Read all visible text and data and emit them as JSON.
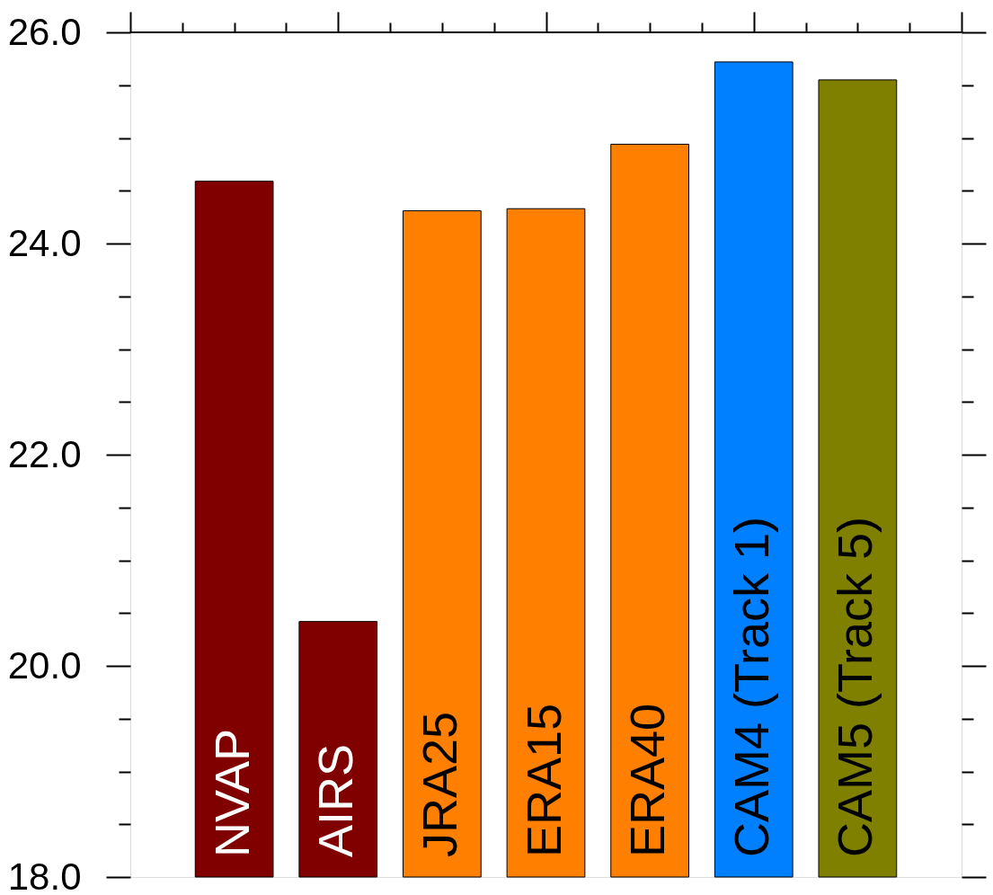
{
  "chart_data": {
    "type": "bar",
    "categories": [
      "NVAP",
      "AIRS",
      "JRA25",
      "ERA15",
      "ERA40",
      "CAM4 (Track 1)",
      "CAM5 (Track 5)"
    ],
    "values": [
      24.59,
      20.42,
      24.31,
      24.33,
      24.94,
      25.72,
      25.55
    ],
    "colors": [
      "#800000",
      "#800000",
      "#ff8000",
      "#ff8000",
      "#ff8000",
      "#0080ff",
      "#808000"
    ],
    "ylim": [
      18,
      26
    ],
    "yticks": [
      {
        "value": 18,
        "label": "18.0"
      },
      {
        "value": 18.5,
        "label": null
      },
      {
        "value": 19,
        "label": null
      },
      {
        "value": 19.5,
        "label": null
      },
      {
        "value": 20,
        "label": "20.0"
      },
      {
        "value": 20.5,
        "label": null
      },
      {
        "value": 21,
        "label": null
      },
      {
        "value": 21.5,
        "label": null
      },
      {
        "value": 22,
        "label": "22.0"
      },
      {
        "value": 22.5,
        "label": null
      },
      {
        "value": 23,
        "label": null
      },
      {
        "value": 23.5,
        "label": null
      },
      {
        "value": 24,
        "label": "24.0"
      },
      {
        "value": 24.5,
        "label": null
      },
      {
        "value": 25,
        "label": null
      },
      {
        "value": 25.5,
        "label": null
      },
      {
        "value": 26,
        "label": "26.0"
      }
    ]
  }
}
